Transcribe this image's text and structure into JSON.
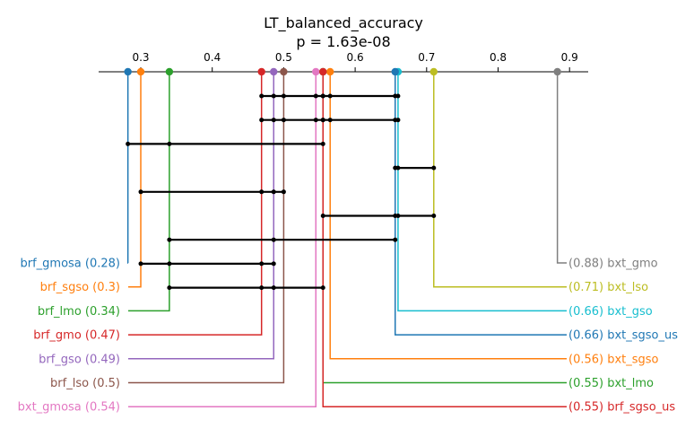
{
  "chart_data": {
    "type": "critical-difference",
    "title": "LT_balanced_accuracy",
    "subtitle": "p = 1.63e-08",
    "xlim": [
      0.256,
      0.925
    ],
    "ticks": [
      "0.3",
      "0.4",
      "0.5",
      "0.6",
      "0.7",
      "0.8",
      "0.9"
    ],
    "tick_values": [
      0.3,
      0.4,
      0.5,
      0.6,
      0.7,
      0.8,
      0.9
    ],
    "left_methods": [
      {
        "name": "brf_gmosa",
        "value": 0.282,
        "label": "brf_gmosa (0.28)",
        "color": "#1f77b4"
      },
      {
        "name": "brf_sgso",
        "value": 0.3,
        "label": "brf_sgso (0.3)",
        "color": "#ff7f0e"
      },
      {
        "name": "brf_lmo",
        "value": 0.34,
        "label": "brf_lmo (0.34)",
        "color": "#2ca02c"
      },
      {
        "name": "brf_gmo",
        "value": 0.469,
        "label": "brf_gmo (0.47)",
        "color": "#d62728"
      },
      {
        "name": "brf_gso",
        "value": 0.486,
        "label": "brf_gso (0.49)",
        "color": "#9467bd"
      },
      {
        "name": "brf_lso",
        "value": 0.5,
        "label": "brf_lso (0.5)",
        "color": "#8c564b"
      },
      {
        "name": "bxt_gmosa",
        "value": 0.545,
        "label": "bxt_gmosa (0.54)",
        "color": "#e377c2"
      }
    ],
    "right_methods": [
      {
        "name": "bxt_gmo",
        "value": 0.883,
        "label": "(0.88) bxt_gmo",
        "color": "#7f7f7f"
      },
      {
        "name": "bxt_lso",
        "value": 0.71,
        "label": "(0.71) bxt_lso",
        "color": "#bcbd22"
      },
      {
        "name": "bxt_gso",
        "value": 0.66,
        "label": "(0.66) bxt_gso",
        "color": "#17becf"
      },
      {
        "name": "bxt_sgso_us",
        "value": 0.656,
        "label": "(0.66) bxt_sgso_us",
        "color": "#1f77b4"
      },
      {
        "name": "bxt_sgso",
        "value": 0.565,
        "label": "(0.56) bxt_sgso",
        "color": "#ff7f0e"
      },
      {
        "name": "bxt_lmo",
        "value": 0.555,
        "label": "(0.55) bxt_lmo",
        "color": "#2ca02c"
      },
      {
        "name": "brf_sgso_us",
        "value": 0.555,
        "label": "(0.55) brf_sgso_us",
        "color": "#d62728"
      }
    ],
    "cliques": [
      [
        0.469,
        0.486,
        0.5,
        0.545,
        0.555,
        0.555,
        0.565,
        0.656,
        0.66
      ],
      [
        0.469,
        0.486,
        0.5,
        0.545,
        0.555,
        0.555,
        0.565,
        0.656,
        0.66
      ],
      [
        0.282,
        0.34,
        0.555
      ],
      [
        0.656,
        0.66,
        0.71
      ],
      [
        0.3,
        0.469,
        0.486,
        0.5
      ],
      [
        0.555,
        0.656,
        0.66,
        0.71
      ],
      [
        0.34,
        0.486,
        0.656
      ],
      [
        0.3,
        0.34,
        0.469,
        0.486
      ],
      [
        0.34,
        0.469,
        0.486,
        0.555
      ]
    ]
  }
}
